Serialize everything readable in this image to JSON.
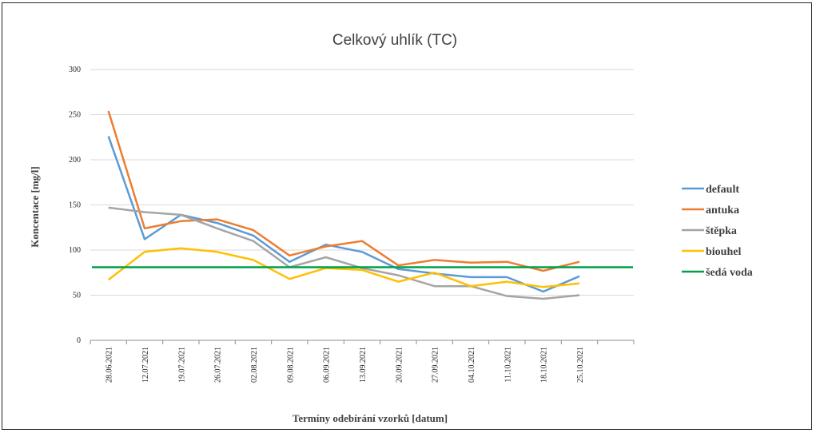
{
  "chart_data": {
    "type": "line",
    "title": "Celkový uhlík (TC)",
    "xlabel": "Termíny odebírání vzorků [datum]",
    "ylabel": "Koncentace [mg/l]",
    "ylim": [
      0,
      300
    ],
    "yticks": [
      "0",
      "50",
      "100",
      "150",
      "200",
      "250",
      "300"
    ],
    "grid": true,
    "legend_position": "right",
    "categories": [
      "28.06.2021",
      "12.07.2021",
      "19.07.2021",
      "26.07.2021",
      "02.08.2021",
      "09.08.2021",
      "06.09.2021",
      "13.09.2021",
      "20.09.2021",
      "27.09.2021",
      "04.10.2021",
      "11.10.2021",
      "18.10.2021",
      "25.10.2021"
    ],
    "series": [
      {
        "name": "default",
        "color": "#5B9BD5",
        "values": [
          226,
          112,
          139,
          130,
          116,
          87,
          106,
          98,
          79,
          74,
          70,
          70,
          54,
          71
        ]
      },
      {
        "name": "antuka",
        "color": "#ED7D31",
        "values": [
          254,
          124,
          132,
          134,
          122,
          94,
          104,
          110,
          83,
          89,
          86,
          87,
          77,
          87
        ]
      },
      {
        "name": "štěpka",
        "color": "#A5A5A5",
        "values": [
          147,
          142,
          139,
          124,
          110,
          81,
          92,
          80,
          72,
          60,
          60,
          49,
          46,
          50
        ]
      },
      {
        "name": "biouhel",
        "color": "#FFC000",
        "values": [
          67,
          98,
          102,
          98,
          89,
          68,
          80,
          78,
          65,
          75,
          60,
          65,
          59,
          63
        ]
      },
      {
        "name": "šedá voda",
        "color": "#00A04A",
        "constant": 81
      }
    ]
  }
}
